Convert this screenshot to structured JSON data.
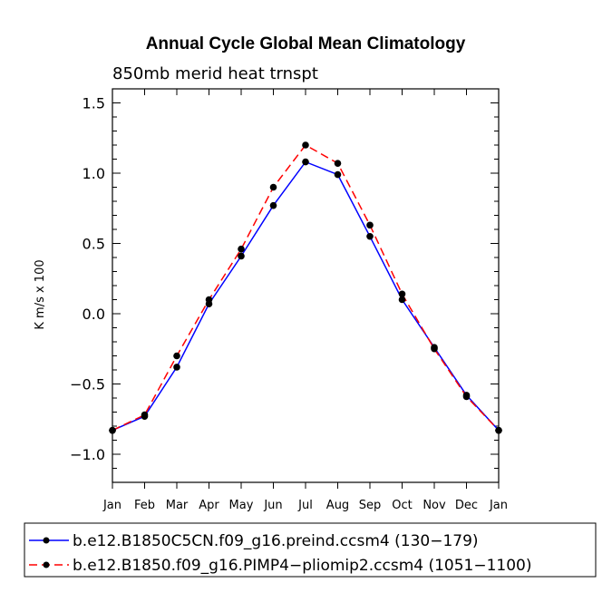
{
  "chart_data": {
    "type": "line",
    "title": "Annual Cycle Global Mean Climatology",
    "subtitle": "850mb merid heat trnspt",
    "xlabel": "",
    "ylabel": "K m/s x 100",
    "categories": [
      "Jan",
      "Feb",
      "Mar",
      "Apr",
      "May",
      "Jun",
      "Jul",
      "Aug",
      "Sep",
      "Oct",
      "Nov",
      "Dec",
      "Jan"
    ],
    "ylim": [
      -1.2,
      1.6
    ],
    "yticks": [
      -1.0,
      -0.5,
      0.0,
      0.5,
      1.0,
      1.5
    ],
    "ytick_labels": [
      "−1.0",
      "−0.5",
      "0.0",
      "0.5",
      "1.0",
      "1.5"
    ],
    "series": [
      {
        "name": "b.e12.B1850C5CN.f09_g16.preind.ccsm4 (130−179)",
        "color": "#0000ff",
        "dash": "solid",
        "values": [
          -0.83,
          -0.73,
          -0.38,
          0.07,
          0.41,
          0.77,
          1.08,
          0.99,
          0.55,
          0.1,
          -0.24,
          -0.58,
          -0.83
        ]
      },
      {
        "name": "b.e12.B1850.f09_g16.PIMP4−pliomip2.ccsm4 (1051−1100)",
        "color": "#ff0000",
        "dash": "dashed",
        "values": [
          -0.83,
          -0.72,
          -0.3,
          0.1,
          0.46,
          0.9,
          1.2,
          1.07,
          0.63,
          0.14,
          -0.25,
          -0.59,
          -0.83
        ]
      }
    ]
  }
}
